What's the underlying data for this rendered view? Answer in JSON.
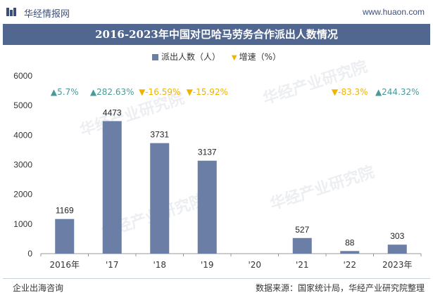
{
  "header": {
    "logo_text": "华经情报网",
    "site_url": "www.huaon.com",
    "logo_color": "#3b4f7c"
  },
  "watermark": {
    "text": "华经产业研究院"
  },
  "footer": {
    "left": "企业出海咨询",
    "right": "数据来源：国家统计局，华经产业研究院整理"
  },
  "chart_data": {
    "type": "bar",
    "title": "2016-2023年中国对巴哈马劳务合作派出人数情况",
    "categories": [
      "2016年",
      "'17",
      "'18",
      "'19",
      "'20",
      "'21",
      "'22",
      "2023年"
    ],
    "series": [
      {
        "name": "派出人数（人）",
        "values": [
          1169,
          4473,
          3731,
          3137,
          null,
          527,
          88,
          303
        ],
        "color": "#6b7ea5"
      },
      {
        "name": "增速（%）",
        "values": [
          5.7,
          282.63,
          -16.59,
          -15.92,
          null,
          null,
          -83.3,
          244.32
        ],
        "labels": [
          "5.7%",
          "282.63%",
          "-16.59%",
          "-15.92%",
          null,
          null,
          "-83.3%",
          "244.32%"
        ],
        "up_color": "#4a9a9a",
        "down_color": "#f0b400"
      }
    ],
    "data_labels": [
      "1169",
      "4473",
      "3731",
      "3137",
      null,
      "527",
      "88",
      "303"
    ],
    "y_ticks": [
      "0",
      "1000",
      "2000",
      "3000",
      "4000",
      "5000",
      "6000"
    ],
    "ylim": [
      0,
      6000
    ],
    "grid": false,
    "legend_position": "top-center"
  }
}
